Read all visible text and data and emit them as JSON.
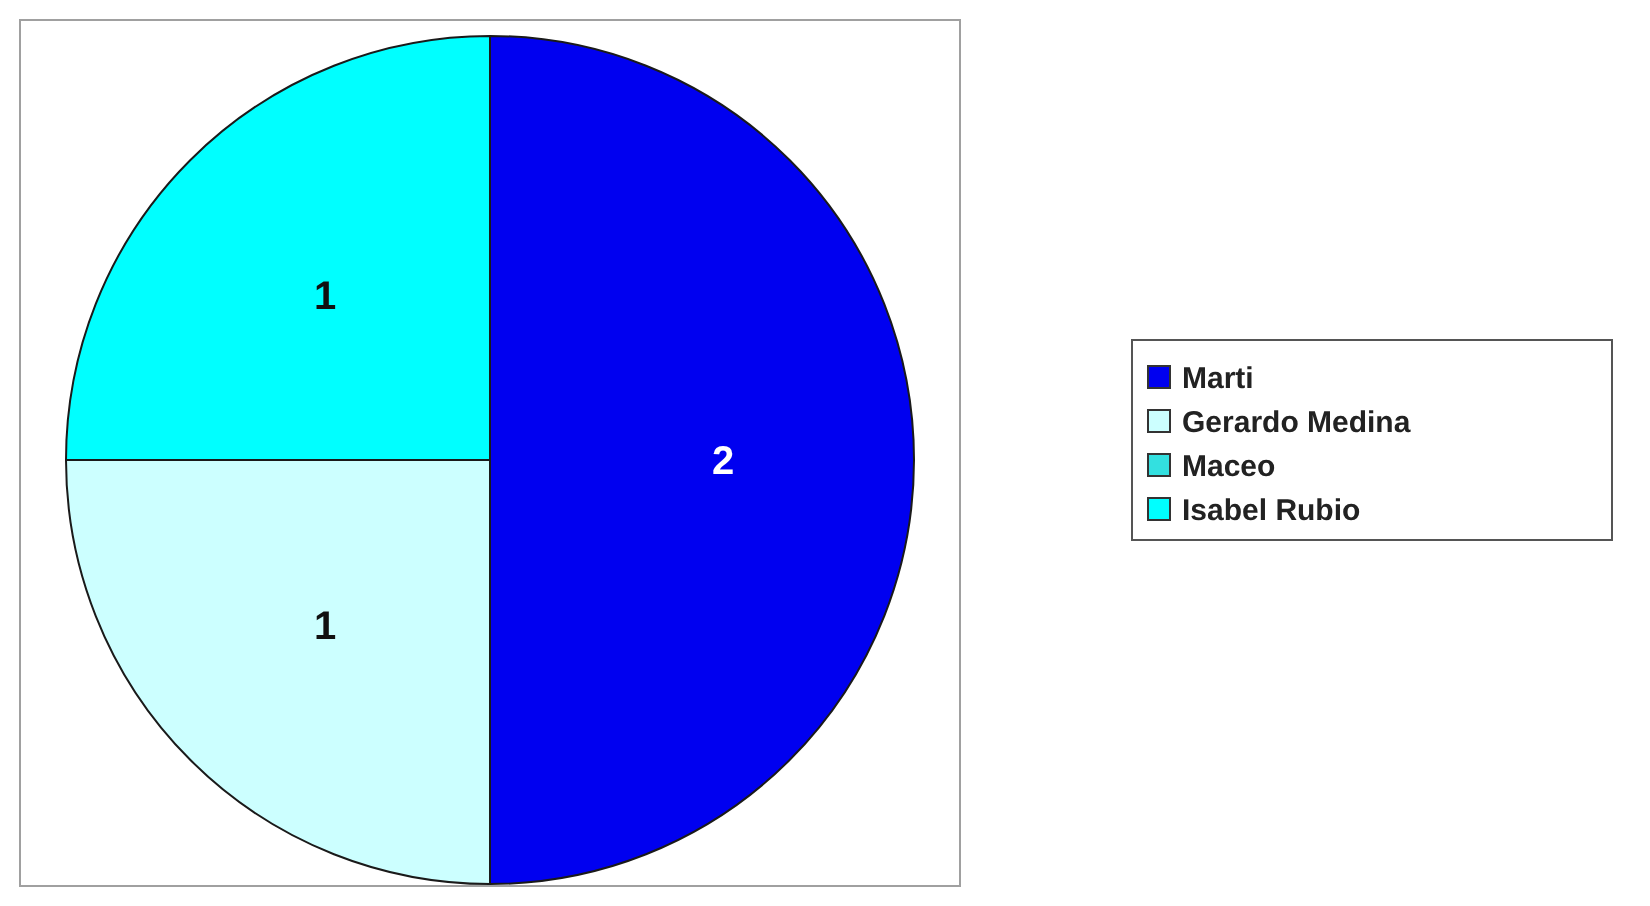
{
  "chart_data": {
    "type": "pie",
    "categories": [
      "Marti",
      "Gerardo Medina",
      "Maceo",
      "Isabel Rubio"
    ],
    "values": [
      2,
      1,
      0,
      1
    ],
    "colors": [
      "#0000f0",
      "#ccffff",
      "#33e0e0",
      "#00ffff"
    ],
    "value_labels": [
      "2",
      "1",
      null,
      "1"
    ],
    "legend": "right"
  }
}
